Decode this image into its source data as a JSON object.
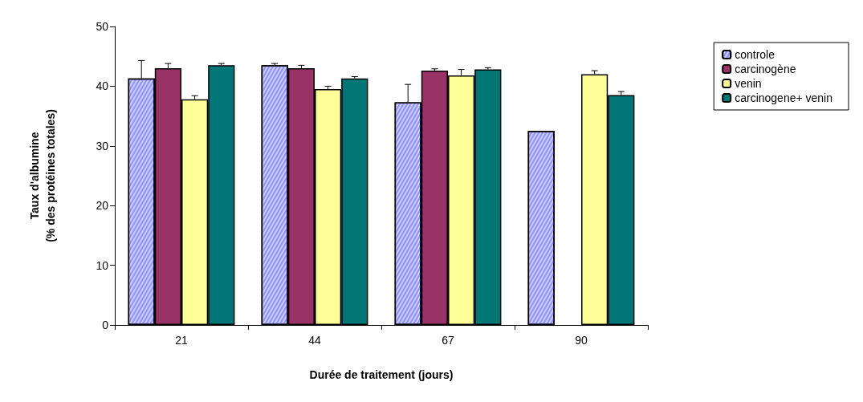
{
  "chart_data": {
    "type": "bar",
    "xlabel": "Durée de traitement (jours)",
    "ylabel": "Taux d'albumine\n(% des protéines totales)",
    "categories": [
      "21",
      "44",
      "67",
      "90"
    ],
    "series": [
      {
        "name": "controle",
        "color": "#ccccff",
        "values": [
          41.3,
          43.5,
          37.3,
          32.5
        ],
        "errors": [
          [
            41.3,
            44.3
          ],
          [
            43.5,
            43.8
          ],
          [
            37.3,
            40.3
          ],
          null
        ]
      },
      {
        "name": "carcinogène",
        "color": "#993366",
        "values": [
          43.0,
          43.0,
          42.6,
          null
        ],
        "errors": [
          [
            43.0,
            43.8
          ],
          [
            43.0,
            43.5
          ],
          [
            42.6,
            42.9
          ],
          null
        ]
      },
      {
        "name": "venin",
        "color": "#ffff99",
        "values": [
          37.8,
          39.5,
          41.8,
          42.0
        ],
        "errors": [
          [
            37.8,
            38.4
          ],
          [
            39.5,
            40.0
          ],
          [
            41.8,
            42.8
          ],
          [
            42.0,
            42.6
          ]
        ]
      },
      {
        "name": "carcinogene+ venin",
        "color": "#007777",
        "values": [
          43.5,
          41.3,
          42.8,
          38.5
        ],
        "errors": [
          [
            43.5,
            43.8
          ],
          [
            41.3,
            41.6
          ],
          [
            42.8,
            43.1
          ],
          [
            38.5,
            39.1
          ]
        ]
      }
    ],
    "ylim": [
      0,
      50
    ],
    "yticks": [
      0,
      10,
      20,
      30,
      40,
      50
    ],
    "grid": false,
    "legend": "right"
  }
}
